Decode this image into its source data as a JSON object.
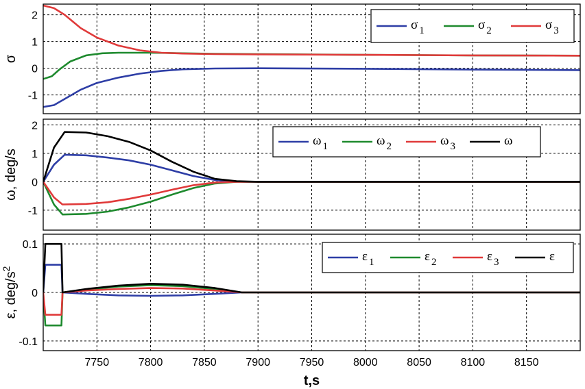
{
  "chart_data": [
    {
      "type": "line",
      "ylabel": "σ",
      "xlim": [
        7700,
        8200
      ],
      "ylim": [
        -1.7,
        2.4
      ],
      "yticks": [
        "-1",
        "0",
        "1",
        "2"
      ],
      "ytick_values": [
        -1,
        0,
        1,
        2
      ],
      "grid": true,
      "legend_position": "top-right",
      "series": [
        {
          "name": "σ1",
          "base": "σ",
          "sub": "1",
          "color": "#2e3ea6",
          "x": [
            7700,
            7710,
            7720,
            7735,
            7750,
            7770,
            7790,
            7810,
            7830,
            7860,
            7900,
            8000,
            8100,
            8200
          ],
          "y": [
            -1.45,
            -1.38,
            -1.15,
            -0.8,
            -0.55,
            -0.35,
            -0.2,
            -0.1,
            -0.04,
            -0.01,
            0.0,
            -0.02,
            -0.05,
            -0.07
          ]
        },
        {
          "name": "σ2",
          "base": "σ",
          "sub": "2",
          "color": "#1e8a2e",
          "x": [
            7700,
            7708,
            7715,
            7725,
            7740,
            7755,
            7770,
            7800,
            7830,
            7860,
            7900,
            8000,
            8100,
            8200
          ],
          "y": [
            -0.4,
            -0.3,
            -0.05,
            0.25,
            0.48,
            0.56,
            0.58,
            0.58,
            0.56,
            0.54,
            0.53,
            0.5,
            0.48,
            0.47
          ]
        },
        {
          "name": "σ3",
          "base": "σ",
          "sub": "3",
          "color": "#e03a3a",
          "x": [
            7700,
            7710,
            7720,
            7735,
            7750,
            7770,
            7790,
            7810,
            7830,
            7860,
            7900,
            8000,
            8100,
            8200
          ],
          "y": [
            2.35,
            2.25,
            2.0,
            1.5,
            1.15,
            0.85,
            0.67,
            0.58,
            0.55,
            0.53,
            0.52,
            0.5,
            0.48,
            0.47
          ]
        }
      ]
    },
    {
      "type": "line",
      "ylabel": "ω, deg/s",
      "xlim": [
        7700,
        8200
      ],
      "ylim": [
        -1.7,
        2.2
      ],
      "yticks": [
        "-1",
        "0",
        "1",
        "2"
      ],
      "ytick_values": [
        -1,
        0,
        1,
        2
      ],
      "grid": true,
      "legend_position": "top-right",
      "series": [
        {
          "name": "ω1",
          "base": "ω",
          "sub": "1",
          "color": "#2e3ea6",
          "x": [
            7700,
            7710,
            7720,
            7740,
            7760,
            7780,
            7800,
            7820,
            7840,
            7860,
            7880,
            7900,
            8200
          ],
          "y": [
            0.0,
            0.6,
            0.95,
            0.93,
            0.85,
            0.75,
            0.6,
            0.4,
            0.2,
            0.06,
            0.0,
            0.0,
            0.0
          ]
        },
        {
          "name": "ω2",
          "base": "ω",
          "sub": "2",
          "color": "#1e8a2e",
          "x": [
            7700,
            7710,
            7718,
            7740,
            7760,
            7780,
            7800,
            7820,
            7840,
            7860,
            7880,
            7900,
            8200
          ],
          "y": [
            0.0,
            -0.8,
            -1.15,
            -1.13,
            -1.05,
            -0.9,
            -0.7,
            -0.45,
            -0.22,
            -0.06,
            0.0,
            0.0,
            0.0
          ]
        },
        {
          "name": "ω3",
          "base": "ω",
          "sub": "3",
          "color": "#e03a3a",
          "x": [
            7700,
            7710,
            7718,
            7740,
            7760,
            7780,
            7800,
            7820,
            7840,
            7860,
            7880,
            7900,
            8200
          ],
          "y": [
            0.0,
            -0.55,
            -0.8,
            -0.78,
            -0.72,
            -0.6,
            -0.45,
            -0.28,
            -0.12,
            -0.03,
            0.0,
            0.0,
            0.0
          ]
        },
        {
          "name": "ω",
          "base": "ω",
          "sub": "",
          "color": "#000000",
          "x": [
            7700,
            7710,
            7720,
            7740,
            7760,
            7780,
            7800,
            7820,
            7840,
            7860,
            7880,
            7900,
            8200
          ],
          "y": [
            0.0,
            1.2,
            1.75,
            1.73,
            1.6,
            1.4,
            1.1,
            0.7,
            0.35,
            0.1,
            0.02,
            0.0,
            0.0
          ]
        }
      ]
    },
    {
      "type": "line",
      "ylabel": "ε, deg/s",
      "ylabel_sup": "2",
      "xlabel": "t,s",
      "xlim": [
        7700,
        8200
      ],
      "ylim": [
        -0.12,
        0.12
      ],
      "xticks": [
        "7750",
        "7800",
        "7850",
        "7900",
        "7950",
        "8000",
        "8050",
        "8100",
        "8150"
      ],
      "xtick_values": [
        7750,
        7800,
        7850,
        7900,
        7950,
        8000,
        8050,
        8100,
        8150
      ],
      "yticks": [
        "-0.1",
        "0",
        "0.1"
      ],
      "ytick_values": [
        -0.1,
        0,
        0.1
      ],
      "grid": true,
      "legend_position": "top-right",
      "series": [
        {
          "name": "ε1",
          "base": "ε",
          "sub": "1",
          "color": "#2e3ea6",
          "x": [
            7700,
            7702,
            7717,
            7718,
            7740,
            7770,
            7800,
            7830,
            7860,
            7885,
            7900,
            8200
          ],
          "y": [
            0.0,
            0.057,
            0.057,
            0.0,
            -0.003,
            -0.006,
            -0.007,
            -0.006,
            -0.003,
            0.0,
            0.0,
            0.0
          ]
        },
        {
          "name": "ε2",
          "base": "ε",
          "sub": "2",
          "color": "#1e8a2e",
          "x": [
            7700,
            7702,
            7717,
            7718,
            7740,
            7770,
            7800,
            7830,
            7860,
            7885,
            7900,
            8200
          ],
          "y": [
            0.0,
            -0.068,
            -0.068,
            0.0,
            0.006,
            0.012,
            0.015,
            0.013,
            0.007,
            0.0,
            0.0,
            0.0
          ]
        },
        {
          "name": "ε3",
          "base": "ε",
          "sub": "3",
          "color": "#e03a3a",
          "x": [
            7700,
            7702,
            7717,
            7718,
            7740,
            7770,
            7800,
            7830,
            7860,
            7885,
            7900,
            8200
          ],
          "y": [
            0.0,
            -0.046,
            -0.046,
            0.0,
            0.004,
            0.007,
            0.009,
            0.008,
            0.004,
            0.0,
            0.0,
            0.0
          ]
        },
        {
          "name": "ε",
          "base": "ε",
          "sub": "",
          "color": "#000000",
          "x": [
            7700,
            7702,
            7717,
            7718,
            7740,
            7770,
            7800,
            7830,
            7860,
            7885,
            7900,
            8200
          ],
          "y": [
            0.0,
            0.1,
            0.1,
            0.0,
            0.007,
            0.014,
            0.018,
            0.016,
            0.009,
            0.0,
            0.0,
            0.0
          ]
        }
      ]
    }
  ]
}
